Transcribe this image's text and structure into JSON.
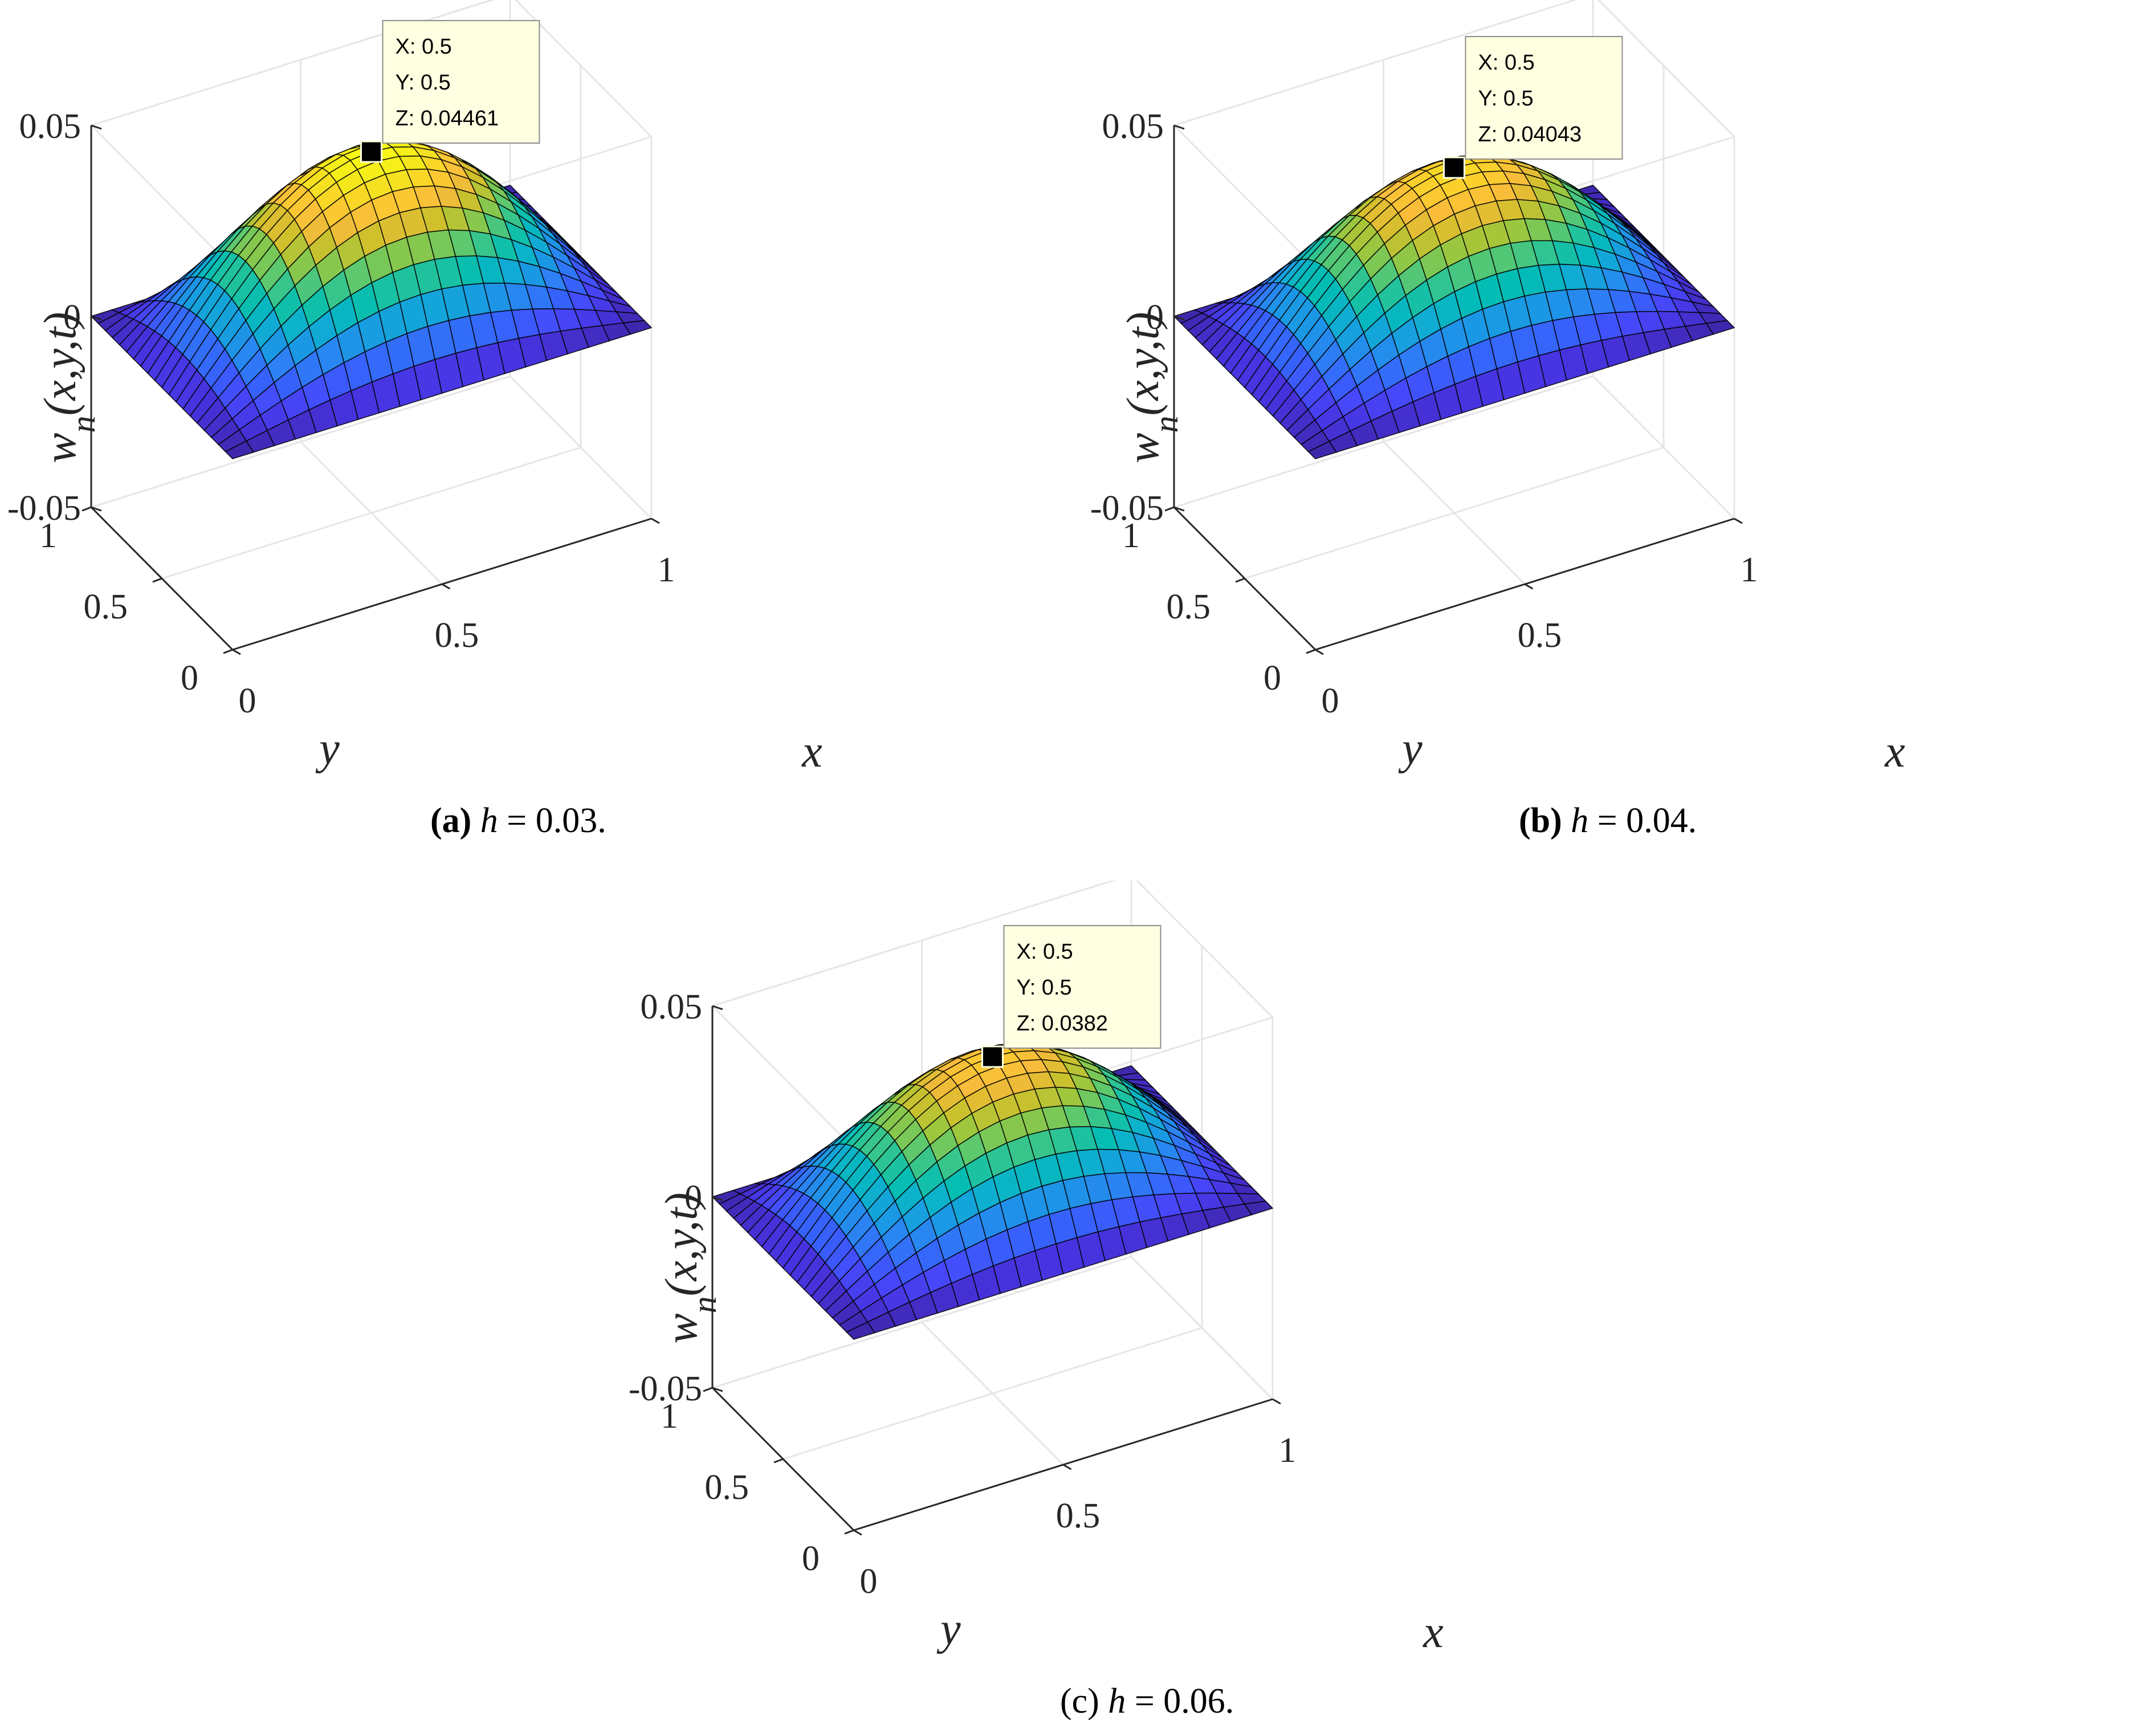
{
  "colors": {
    "gridline": "#e6e6e6",
    "axis": "#262626",
    "datatip_bg": "#ffffe1",
    "datatip_border": "#8c8c8c",
    "colormap": [
      "#3e26a8",
      "#4734e0",
      "#4748fa",
      "#3663fb",
      "#2e7ff5",
      "#1b97e5",
      "#10acd3",
      "#02bcb5",
      "#29c497",
      "#60c86b",
      "#9bc73f",
      "#cfc02c",
      "#f8ba3c",
      "#fcce2e",
      "#f3e61d",
      "#f9fb15"
    ]
  },
  "chart_data": [
    {
      "type": "surface",
      "panel_label": "(a)",
      "caption_var": "h",
      "caption_value": "= 0.03.",
      "zlabel": "w",
      "zlabel_sub": "n",
      "zlabel_args": "(x,y,t)",
      "xlabel": "x",
      "ylabel": "y",
      "xlim": [
        0,
        1
      ],
      "ylim": [
        0,
        1
      ],
      "zlim": [
        -0.05,
        0.05
      ],
      "xticks": [
        "0",
        "0.5",
        "1"
      ],
      "yticks": [
        "0",
        "0.5",
        "1"
      ],
      "zticks": [
        "-0.05",
        "0",
        "0.05"
      ],
      "surface": "z = peak * sin(pi*x) * sin(pi*y), 21x21 grid",
      "peak": 0.04461,
      "datatip": {
        "x_text": "X: 0.5",
        "y_text": "Y: 0.5",
        "z_text": "Z: 0.04461"
      }
    },
    {
      "type": "surface",
      "panel_label": "(b)",
      "caption_var": "h",
      "caption_value": "= 0.04.",
      "zlabel": "w",
      "zlabel_sub": "n",
      "zlabel_args": "(x,y,t)",
      "xlabel": "x",
      "ylabel": "y",
      "xlim": [
        0,
        1
      ],
      "ylim": [
        0,
        1
      ],
      "zlim": [
        -0.05,
        0.05
      ],
      "xticks": [
        "0",
        "0.5",
        "1"
      ],
      "yticks": [
        "0",
        "0.5",
        "1"
      ],
      "zticks": [
        "-0.05",
        "0",
        "0.05"
      ],
      "surface": "z = peak * sin(pi*x) * sin(pi*y), 21x21 grid",
      "peak": 0.04043,
      "datatip": {
        "x_text": "X: 0.5",
        "y_text": "Y: 0.5",
        "z_text": "Z: 0.04043"
      }
    },
    {
      "type": "surface",
      "panel_label": "(c)",
      "caption_var": "h",
      "caption_value": "= 0.06.",
      "zlabel": "w",
      "zlabel_sub": "n",
      "zlabel_args": "(x,y,t)",
      "xlabel": "x",
      "ylabel": "y",
      "xlim": [
        0,
        1
      ],
      "ylim": [
        0,
        1
      ],
      "zlim": [
        -0.05,
        0.05
      ],
      "xticks": [
        "0",
        "0.5",
        "1"
      ],
      "yticks": [
        "0",
        "0.5",
        "1"
      ],
      "zticks": [
        "-0.05",
        "0",
        "0.05"
      ],
      "surface": "z = peak * sin(pi*x) * sin(pi*y), 21x21 grid",
      "peak": 0.0382,
      "datatip": {
        "x_text": "X: 0.5",
        "y_text": "Y: 0.5",
        "z_text": "Z: 0.0382"
      }
    }
  ]
}
